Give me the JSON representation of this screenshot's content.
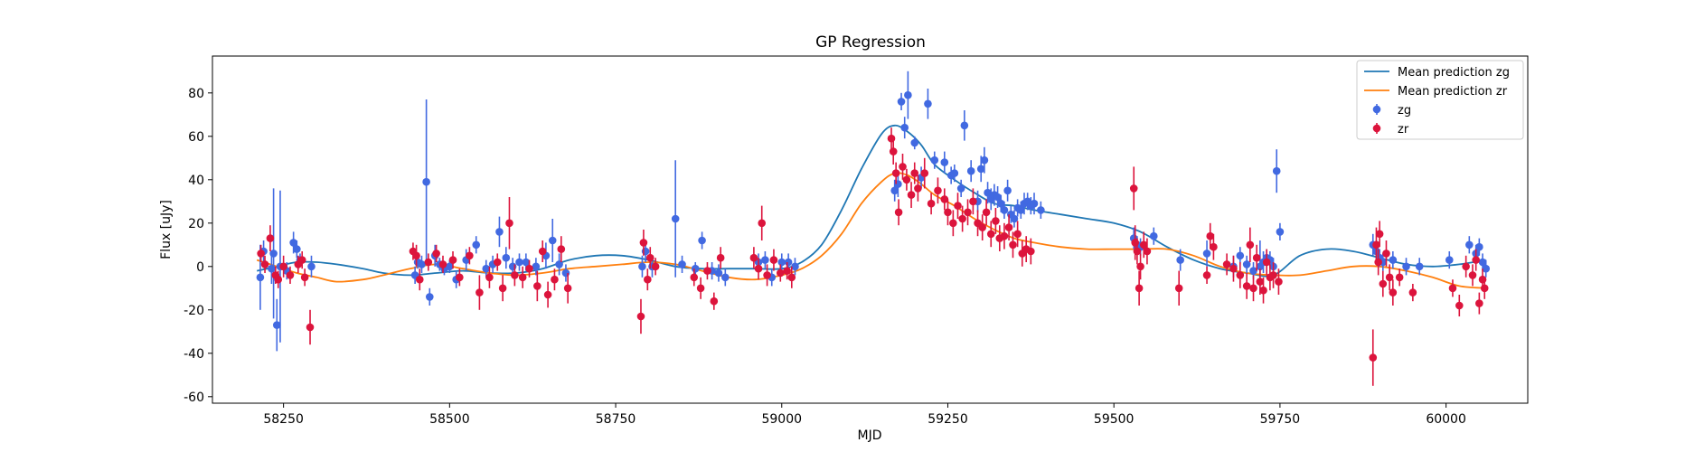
{
  "chart_data": {
    "type": "scatter",
    "title": "GP Regression",
    "xlabel": "MJD",
    "ylabel": "Flux [uJy]",
    "xlim": [
      58143,
      60123
    ],
    "ylim": [
      -63,
      97
    ],
    "xticks": [
      58250,
      58500,
      58750,
      59000,
      59250,
      59500,
      59750,
      60000
    ],
    "yticks": [
      -60,
      -40,
      -20,
      0,
      20,
      40,
      60,
      80
    ],
    "grid": false,
    "legend_position": "top-right",
    "mean_predictions": [
      {
        "name": "Mean prediction zg",
        "color": "#1f77b4",
        "x": [
          58210,
          58240,
          58270,
          58300,
          58330,
          58370,
          58400,
          58440,
          58480,
          58520,
          58560,
          58600,
          58640,
          58680,
          58720,
          58760,
          58800,
          58840,
          58880,
          58920,
          58960,
          59000,
          59030,
          59060,
          59090,
          59120,
          59150,
          59170,
          59190,
          59210,
          59230,
          59260,
          59290,
          59320,
          59350,
          59380,
          59420,
          59460,
          59500,
          59540,
          59580,
          59620,
          59660,
          59700,
          59740,
          59780,
          59820,
          59860,
          59900,
          59940,
          59980,
          60020,
          60060
        ],
        "y": [
          -2,
          0,
          2,
          2,
          1,
          -1,
          -3,
          -4,
          -3,
          -2,
          -3,
          -3,
          -1,
          3,
          5,
          5,
          3,
          0,
          -1,
          -1,
          -1,
          -1,
          2,
          10,
          26,
          45,
          61,
          65,
          62,
          56,
          47,
          40,
          34,
          29,
          28,
          26,
          24,
          22,
          20,
          16,
          9,
          3,
          -1,
          -3,
          -4,
          5,
          8,
          7,
          4,
          1,
          0,
          1,
          3
        ]
      },
      {
        "name": "Mean prediction zr",
        "color": "#ff7f0e",
        "x": [
          58210,
          58240,
          58270,
          58300,
          58330,
          58370,
          58400,
          58440,
          58480,
          58520,
          58560,
          58600,
          58640,
          58680,
          58720,
          58760,
          58800,
          58840,
          58880,
          58920,
          58960,
          59000,
          59030,
          59060,
          59090,
          59120,
          59150,
          59170,
          59190,
          59210,
          59230,
          59260,
          59290,
          59320,
          59350,
          59380,
          59420,
          59460,
          59500,
          59540,
          59580,
          59620,
          59660,
          59700,
          59740,
          59780,
          59820,
          59860,
          59900,
          59940,
          59980,
          60020,
          60060
        ],
        "y": [
          3,
          0,
          -3,
          -5,
          -7,
          -6,
          -4,
          -1,
          1,
          -1,
          -3,
          -4,
          -3,
          -1,
          0,
          1,
          2,
          1,
          -2,
          -5,
          -6,
          -4,
          -1,
          5,
          15,
          29,
          39,
          43,
          42,
          38,
          33,
          28,
          22,
          17,
          13,
          11,
          9,
          8,
          8,
          8,
          8,
          5,
          0,
          -3,
          -4,
          -4,
          -2,
          0,
          0,
          -2,
          -5,
          -9,
          -10
        ]
      }
    ],
    "series": [
      {
        "name": "zg",
        "color": "#4169e1",
        "x": [
          58215,
          58220,
          58232,
          58235,
          58240,
          58245,
          58255,
          58265,
          58270,
          58275,
          58292,
          58448,
          58452,
          58458,
          58465,
          58470,
          58478,
          58485,
          58492,
          58500,
          58510,
          58525,
          58540,
          58555,
          58565,
          58575,
          58585,
          58595,
          58605,
          58615,
          58630,
          58645,
          58655,
          58665,
          58675,
          58790,
          58795,
          58805,
          58840,
          58850,
          58870,
          58880,
          58895,
          58905,
          58915,
          58965,
          58975,
          58985,
          59000,
          59010,
          59020,
          59170,
          59175,
          59180,
          59185,
          59190,
          59200,
          59210,
          59220,
          59230,
          59245,
          59255,
          59260,
          59270,
          59275,
          59285,
          59295,
          59300,
          59305,
          59310,
          59315,
          59320,
          59325,
          59330,
          59335,
          59340,
          59345,
          59350,
          59355,
          59360,
          59365,
          59370,
          59375,
          59380,
          59390,
          59530,
          59535,
          59540,
          59560,
          59600,
          59640,
          59680,
          59690,
          59700,
          59710,
          59720,
          59725,
          59730,
          59735,
          59740,
          59745,
          59750,
          59890,
          59895,
          59900,
          59905,
          59920,
          59940,
          59960,
          60005,
          60035,
          60045,
          60050,
          60055,
          60060
        ],
        "y": [
          -5,
          7,
          -1,
          6,
          -27,
          0,
          -2,
          11,
          8,
          3,
          0,
          -4,
          2,
          1,
          39,
          -14,
          5,
          1,
          -1,
          0,
          -6,
          3,
          10,
          -1,
          1,
          16,
          4,
          0,
          2,
          2,
          0,
          5,
          12,
          1,
          -3,
          0,
          7,
          0,
          22,
          1,
          -1,
          12,
          -2,
          -3,
          -5,
          2,
          3,
          -5,
          2,
          2,
          0,
          35,
          38,
          76,
          64,
          79,
          57,
          41,
          75,
          49,
          48,
          42,
          43,
          36,
          65,
          44,
          30,
          45,
          49,
          34,
          31,
          33,
          32,
          29,
          26,
          35,
          24,
          22,
          27,
          26,
          29,
          30,
          28,
          29,
          26,
          13,
          10,
          9,
          14,
          3,
          6,
          0,
          5,
          1,
          -2,
          0,
          2,
          4,
          3,
          0,
          44,
          16,
          10,
          7,
          4,
          2,
          3,
          0,
          0,
          3,
          10,
          6,
          9,
          2,
          -1
        ],
        "yerr": [
          15,
          5,
          7,
          30,
          12,
          35,
          4,
          5,
          4,
          3,
          5,
          4,
          3,
          4,
          38,
          4,
          5,
          3,
          3,
          3,
          4,
          5,
          4,
          4,
          4,
          7,
          5,
          4,
          4,
          4,
          4,
          6,
          10,
          5,
          4,
          5,
          5,
          5,
          27,
          4,
          3,
          4,
          4,
          4,
          4,
          4,
          4,
          4,
          4,
          4,
          4,
          5,
          6,
          4,
          5,
          11,
          3,
          5,
          7,
          4,
          5,
          4,
          4,
          4,
          7,
          5,
          5,
          6,
          6,
          5,
          5,
          5,
          5,
          4,
          4,
          5,
          4,
          4,
          4,
          4,
          5,
          4,
          4,
          5,
          4,
          5,
          4,
          4,
          4,
          5,
          6,
          5,
          4,
          4,
          4,
          12,
          5,
          4,
          4,
          4,
          10,
          4,
          5,
          5,
          4,
          4,
          4,
          4,
          4,
          4,
          4,
          4,
          4,
          4,
          4
        ]
      },
      {
        "name": "zr",
        "color": "#dc143c",
        "x": [
          58216,
          58222,
          58230,
          58238,
          58242,
          58250,
          58260,
          58272,
          58278,
          58282,
          58290,
          58445,
          58450,
          58455,
          58468,
          58480,
          58490,
          58505,
          58515,
          58530,
          58545,
          58560,
          58572,
          58580,
          58590,
          58598,
          58610,
          58620,
          58632,
          58640,
          58648,
          58658,
          58668,
          58678,
          58788,
          58792,
          58798,
          58802,
          58810,
          58868,
          58878,
          58888,
          58898,
          58908,
          58958,
          58965,
          58970,
          58978,
          58988,
          58998,
          59008,
          59015,
          59165,
          59168,
          59172,
          59176,
          59182,
          59188,
          59195,
          59200,
          59205,
          59215,
          59225,
          59235,
          59245,
          59250,
          59258,
          59265,
          59272,
          59280,
          59288,
          59295,
          59302,
          59308,
          59315,
          59322,
          59328,
          59335,
          59342,
          59348,
          59355,
          59362,
          59368,
          59375,
          59530,
          59532,
          59535,
          59538,
          59540,
          59545,
          59550,
          59598,
          59640,
          59645,
          59650,
          59670,
          59680,
          59690,
          59700,
          59705,
          59710,
          59715,
          59720,
          59725,
          59730,
          59735,
          59740,
          59748,
          59890,
          59895,
          59898,
          59900,
          59905,
          59910,
          59915,
          59920,
          59930,
          59950,
          60010,
          60020,
          60030,
          60040,
          60045,
          60050,
          60055,
          60058
        ],
        "y": [
          6,
          1,
          13,
          -4,
          -6,
          0,
          -4,
          1,
          3,
          -5,
          -28,
          7,
          5,
          -6,
          2,
          6,
          1,
          3,
          -5,
          5,
          -12,
          -5,
          2,
          -10,
          20,
          -4,
          -5,
          -1,
          -9,
          7,
          -13,
          -6,
          8,
          -10,
          -23,
          11,
          -6,
          4,
          0,
          -5,
          -10,
          -2,
          -16,
          4,
          4,
          -1,
          20,
          -4,
          3,
          -3,
          -2,
          -5,
          59,
          53,
          43,
          25,
          46,
          40,
          33,
          43,
          36,
          43,
          29,
          35,
          31,
          25,
          20,
          28,
          22,
          25,
          30,
          20,
          18,
          25,
          15,
          21,
          13,
          14,
          18,
          10,
          15,
          6,
          8,
          7,
          36,
          11,
          7,
          -10,
          0,
          10,
          7,
          -10,
          -4,
          14,
          9,
          1,
          -1,
          -4,
          -9,
          10,
          -10,
          4,
          -7,
          -11,
          2,
          -5,
          -4,
          -7,
          -42,
          10,
          2,
          15,
          -8,
          6,
          -5,
          -12,
          -5,
          -12,
          -10,
          -18,
          0,
          -4,
          3,
          -17,
          -6,
          -10
        ],
        "yerr": [
          4,
          4,
          6,
          4,
          4,
          5,
          4,
          4,
          4,
          4,
          8,
          4,
          5,
          5,
          4,
          4,
          4,
          4,
          4,
          4,
          8,
          5,
          4,
          6,
          12,
          5,
          5,
          4,
          7,
          5,
          6,
          5,
          6,
          7,
          8,
          6,
          5,
          5,
          4,
          4,
          5,
          4,
          4,
          5,
          5,
          5,
          8,
          5,
          5,
          4,
          4,
          5,
          5,
          6,
          5,
          6,
          6,
          5,
          6,
          5,
          6,
          7,
          5,
          6,
          5,
          6,
          6,
          6,
          6,
          6,
          6,
          6,
          6,
          6,
          6,
          6,
          6,
          6,
          6,
          6,
          6,
          6,
          6,
          6,
          10,
          8,
          6,
          8,
          6,
          6,
          6,
          8,
          4,
          6,
          6,
          5,
          6,
          6,
          6,
          8,
          6,
          6,
          6,
          6,
          6,
          6,
          6,
          6,
          13,
          8,
          6,
          6,
          6,
          6,
          6,
          6,
          4,
          4,
          4,
          5,
          5,
          5,
          5,
          5,
          5,
          5
        ]
      }
    ]
  }
}
